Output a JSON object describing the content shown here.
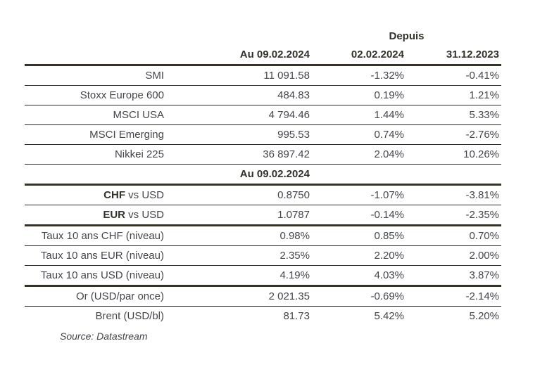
{
  "table": {
    "header": {
      "since_group_label": "Depuis",
      "value_col": "Au 09.02.2024",
      "since_col1": "02.02.2024",
      "since_col2": "31.12.2023"
    },
    "indices_rows": [
      {
        "label": "SMI",
        "value": "11 091.58",
        "since1": "-1.32%",
        "since2": "-0.41%"
      },
      {
        "label": "Stoxx Europe 600",
        "value": "484.83",
        "since1": "0.19%",
        "since2": "1.21%"
      },
      {
        "label": "MSCI USA",
        "value": "4 794.46",
        "since1": "1.44%",
        "since2": "5.33%"
      },
      {
        "label": "MSCI Emerging",
        "value": "995.53",
        "since1": "0.74%",
        "since2": "-2.76%"
      },
      {
        "label": "Nikkei 225",
        "value": "36 897.42",
        "since1": "2.04%",
        "since2": "10.26%"
      }
    ],
    "section2_header": "Au 09.02.2024",
    "fx_rows": [
      {
        "label_bold": "CHF",
        "label_rest": " vs USD",
        "value": "0.8750",
        "since1": "-1.07%",
        "since2": "-3.81%"
      },
      {
        "label_bold": "EUR",
        "label_rest": " vs USD",
        "value": "1.0787",
        "since1": "-0.14%",
        "since2": "-2.35%"
      }
    ],
    "rates_rows": [
      {
        "label": "Taux 10 ans CHF (niveau)",
        "value": "0.98%",
        "since1": "0.85%",
        "since2": "0.70%"
      },
      {
        "label": "Taux 10 ans EUR (niveau)",
        "value": "2.35%",
        "since1": "2.20%",
        "since2": "2.00%"
      },
      {
        "label": "Taux 10 ans USD (niveau)",
        "value": "4.19%",
        "since1": "4.03%",
        "since2": "3.87%"
      }
    ],
    "commodities_rows": [
      {
        "label": "Or (USD/par once)",
        "value": "2 021.35",
        "since1": "-0.69%",
        "since2": "-2.14%"
      },
      {
        "label": "Brent (USD/bl)",
        "value": "81.73",
        "since1": "5.42%",
        "since2": "5.20%"
      }
    ]
  },
  "footer": {
    "source": "Source: Datastream"
  },
  "colors": {
    "text": "#46454d",
    "heading_text": "#33312b",
    "thick_rule": "#383223",
    "thin_rule": "#2b2b2b",
    "background": "#ffffff"
  }
}
